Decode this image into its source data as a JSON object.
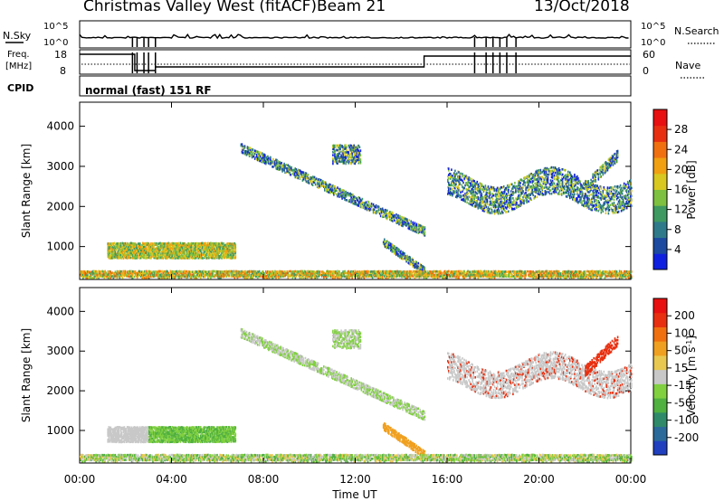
{
  "header": {
    "title": "Christmas Valley West (fitACF)",
    "beam": "Beam 21",
    "date": "13/Oct/2018"
  },
  "strip_labels": {
    "nsky": "N.Sky",
    "nsky_ticks": [
      "10^5",
      "10^0"
    ],
    "nsearch": "N.Search",
    "nsearch_ticks": [
      "10^5",
      "10^0"
    ],
    "freq_line1": "Freq.",
    "freq_line2": "[MHz]",
    "freq_ticks": [
      "18",
      "8"
    ],
    "nave": "Nave",
    "nave_ticks": [
      "60",
      "0"
    ],
    "cpid": "CPID",
    "cpid_text": "normal (fast) 151 RF"
  },
  "chart_data": [
    {
      "type": "heatmap",
      "title": "",
      "xlabel": "Time UT",
      "ylabel": "Slant Range [km]",
      "x_ticks": [
        "00:00",
        "04:00",
        "08:00",
        "12:00",
        "16:00",
        "20:00",
        "00:00"
      ],
      "xlim": [
        0,
        24
      ],
      "y_ticks": [
        "1000",
        "2000",
        "3000",
        "4000"
      ],
      "ylim": [
        180,
        4600
      ],
      "colorbar": {
        "label": "Power [dB]",
        "ticks": [
          "4",
          "8",
          "12",
          "16",
          "20",
          "24",
          "28"
        ],
        "colors": [
          "#1020e0",
          "#1c4aa0",
          "#2f7a8a",
          "#3e9a60",
          "#7ec040",
          "#d8c820",
          "#f0a010",
          "#f07010",
          "#e83010",
          "#e81010"
        ],
        "range": [
          0,
          30
        ]
      }
    },
    {
      "type": "heatmap",
      "title": "",
      "xlabel": "Time UT",
      "ylabel": "Slant Range [km]",
      "x_ticks": [
        "00:00",
        "04:00",
        "08:00",
        "12:00",
        "16:00",
        "20:00",
        "00:00"
      ],
      "xlim": [
        0,
        24
      ],
      "y_ticks": [
        "1000",
        "2000",
        "3000",
        "4000"
      ],
      "ylim": [
        180,
        4600
      ],
      "colorbar": {
        "label": "Velocity [m s^-1]",
        "ticks": [
          "200",
          "100",
          "50",
          "15",
          "-15",
          "-50",
          "-100",
          "-200"
        ],
        "colors": [
          "#2040c0",
          "#2a6a9a",
          "#2f8a6a",
          "#50b040",
          "#80d040",
          "#c8c8c8",
          "#e8c850",
          "#f0a020",
          "#f07010",
          "#e83010",
          "#e81010"
        ],
        "range": [
          -250,
          250
        ]
      }
    }
  ],
  "x_axis_title": "Time UT",
  "ylabel_upper": "Slant Range [km]",
  "ylabel_lower": "Slant Range [km]",
  "colorbar_power_label": "Power [dB]",
  "colorbar_velocity_label": "Velocity [m s",
  "colorbar_velocity_sup": "-1",
  "colorbar_velocity_close": "]"
}
